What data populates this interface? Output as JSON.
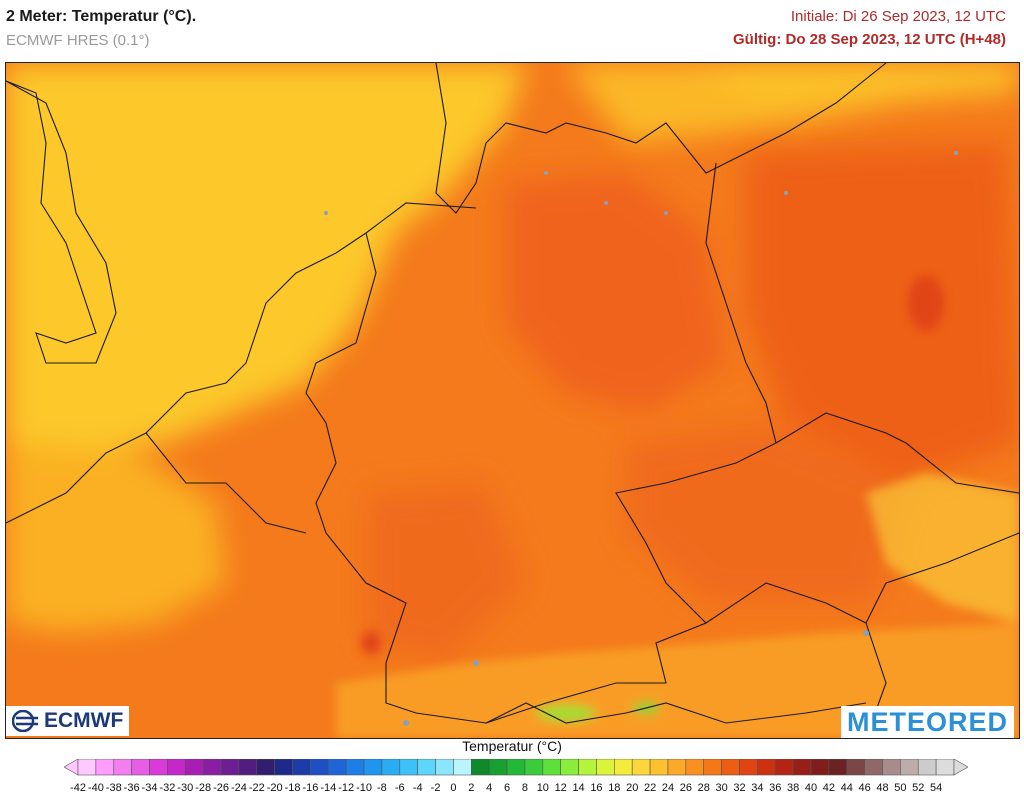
{
  "header": {
    "title": "2 Meter: Temperatur (°C).",
    "model": "ECMWF HRES (0.1°)",
    "initial": "Initiale: Di 26 Sep 2023, 12 UTC",
    "valid": "Gültig: Do 28 Sep 2023, 12 UTC (H+48)"
  },
  "logos": {
    "ecmwf": "ECMWF",
    "meteored": "METEORED"
  },
  "legend": {
    "title": "Temperatur (°C)",
    "ticks": [
      "-42",
      "-40",
      "-38",
      "-36",
      "-34",
      "-32",
      "-30",
      "-28",
      "-26",
      "-24",
      "-22",
      "-20",
      "-18",
      "-16",
      "-14",
      "-12",
      "-10",
      "-8",
      "-6",
      "-4",
      "-2",
      "0",
      "2",
      "4",
      "6",
      "8",
      "10",
      "12",
      "14",
      "16",
      "18",
      "20",
      "22",
      "24",
      "26",
      "28",
      "30",
      "32",
      "34",
      "36",
      "38",
      "40",
      "42",
      "44",
      "46",
      "48",
      "50",
      "52",
      "54"
    ],
    "colors": [
      "#ffc8ff",
      "#ff9cff",
      "#f27ef0",
      "#e65ee6",
      "#d93ad9",
      "#c528c8",
      "#a81eb5",
      "#8a1ea3",
      "#6d1e92",
      "#511e80",
      "#321e6e",
      "#1e2a8a",
      "#1e3ca8",
      "#1e50c4",
      "#1e66d8",
      "#1e7ee8",
      "#1e96f0",
      "#28acf4",
      "#3cc2f8",
      "#5cd6fa",
      "#8ae6fc",
      "#baf4fe",
      "#0e8a2a",
      "#18a030",
      "#22b838",
      "#3acc3a",
      "#5ee03a",
      "#88ee3a",
      "#b4f43a",
      "#daf43a",
      "#f4ec3a",
      "#fcd63a",
      "#fcc030",
      "#fca828",
      "#fa9020",
      "#f47818",
      "#ec5e14",
      "#e04412",
      "#cc3212",
      "#b42414",
      "#981e18",
      "#801e1e",
      "#6a2222",
      "#7a4646",
      "#906868",
      "#a88c8c",
      "#bcacac",
      "#cccccc",
      "#dcdcdc"
    ]
  }
}
